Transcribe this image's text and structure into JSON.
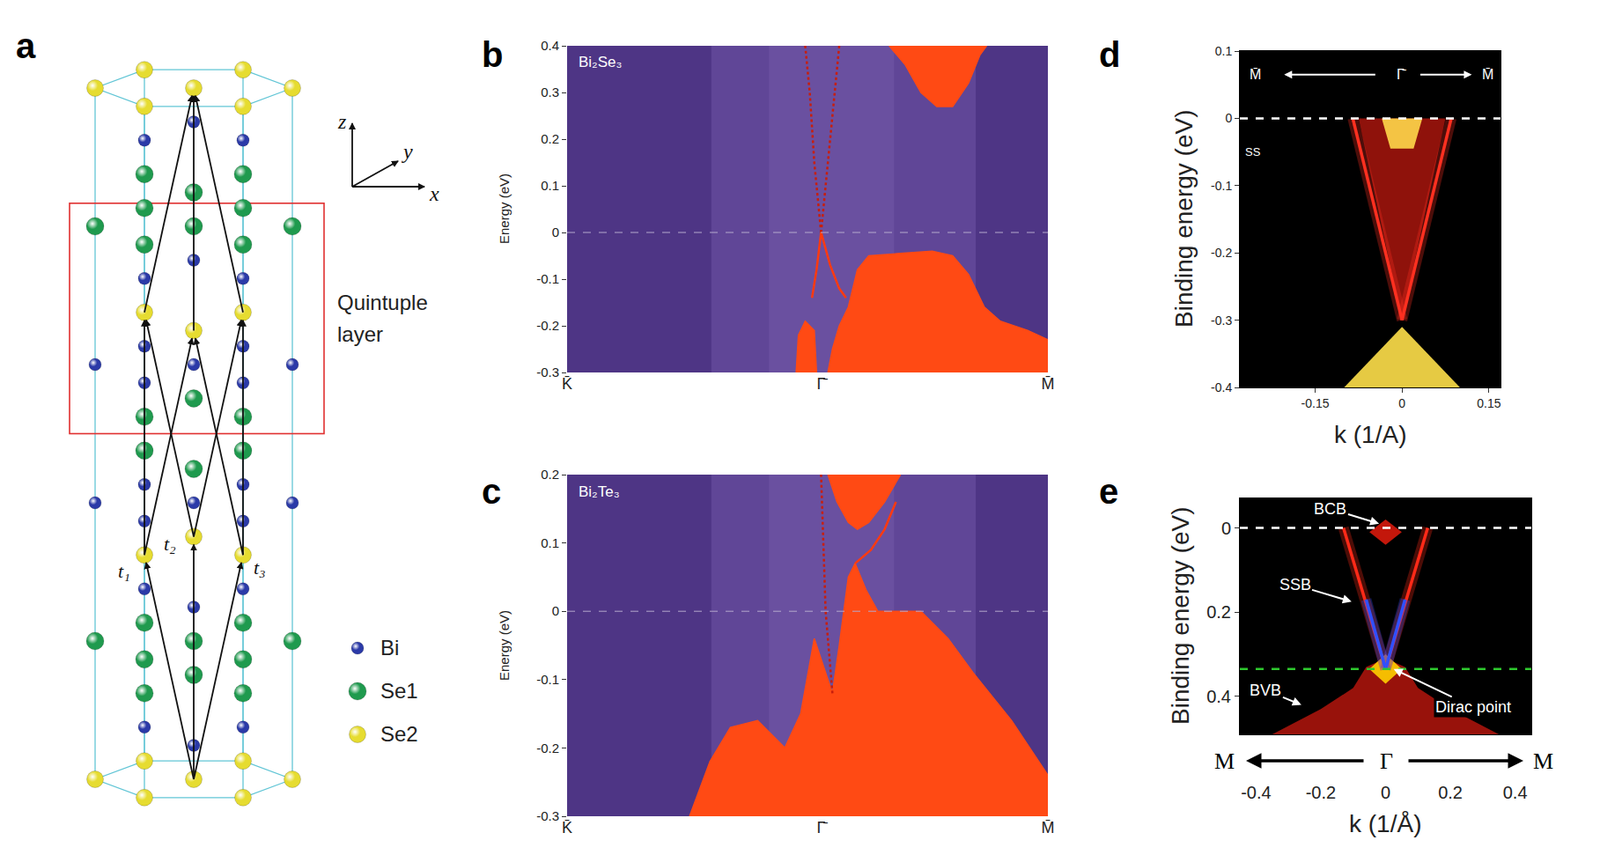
{
  "panel_a": {
    "panel_label": "a",
    "box_label": "Quintuple layer",
    "axes": [
      "x",
      "y",
      "z"
    ],
    "vectors": [
      "t₁",
      "t₂",
      "t₃"
    ],
    "legend": [
      {
        "name": "Bi",
        "color": "#2b3aa8"
      },
      {
        "name": "Se1",
        "color": "#1f9a4e"
      },
      {
        "name": "Se2",
        "color": "#e6dc30"
      }
    ]
  },
  "chart_data": [
    {
      "panel_label": "b",
      "type": "band",
      "title": "Bi₂Se₃",
      "y_label": "Energy (eV)",
      "xlim": [
        -1.12,
        1
      ],
      "xticks": [
        {
          "value": -1.12,
          "label": "K̄"
        },
        {
          "value": 0,
          "label": "Γ̄"
        },
        {
          "value": 1,
          "label": "M̄"
        }
      ],
      "ylim": [
        -0.3,
        0.4
      ],
      "yticks": [
        -0.3,
        -0.2,
        -0.1,
        0,
        0.1,
        0.2,
        0.3,
        0.4
      ],
      "series": [
        {
          "type": "area",
          "color": "#ff4a14",
          "x": [
            0.3,
            0.37,
            0.44,
            0.51,
            0.58,
            0.65,
            0.7,
            0.73
          ],
          "values": [
            0.4,
            0.36,
            0.3,
            0.27,
            0.27,
            0.32,
            0.38,
            0.4
          ]
        },
        {
          "type": "area",
          "color": "#ff4a14",
          "x": [
            0.03,
            0.05,
            0.08,
            0.12,
            0.16,
            0.21,
            0.35,
            0.49,
            0.58,
            0.65,
            0.72,
            0.79,
            0.91,
            1.0,
            1.0
          ],
          "values": [
            -0.3,
            -0.25,
            -0.2,
            -0.16,
            -0.08,
            -0.05,
            -0.045,
            -0.04,
            -0.05,
            -0.09,
            -0.16,
            -0.19,
            -0.21,
            -0.23,
            -0.3
          ]
        },
        {
          "type": "area",
          "color": "#ff4a14",
          "x": [
            -0.11,
            -0.1,
            -0.07,
            -0.03,
            -0.02
          ],
          "values": [
            -0.3,
            -0.22,
            -0.19,
            -0.21,
            -0.3
          ]
        },
        {
          "type": "line",
          "line_style": "dotted",
          "color": "#c81e0c",
          "x": [
            0,
            0.03,
            0.06,
            0.08
          ],
          "values": [
            0,
            0.15,
            0.3,
            0.4
          ]
        },
        {
          "type": "line",
          "line_style": "dotted",
          "color": "#c81e0c",
          "x": [
            0,
            -0.03,
            -0.05,
            -0.07
          ],
          "values": [
            0,
            0.15,
            0.3,
            0.4
          ]
        },
        {
          "type": "line",
          "line_style": "solid",
          "color": "#ff3a10",
          "x": [
            0,
            0.04,
            0.08,
            0.11
          ],
          "values": [
            0,
            -0.07,
            -0.12,
            -0.14
          ]
        },
        {
          "type": "line",
          "line_style": "solid",
          "color": "#ff3a10",
          "x": [
            0,
            -0.02,
            -0.04
          ],
          "values": [
            0,
            -0.08,
            -0.14
          ]
        },
        {
          "type": "line",
          "line_style": "dashed",
          "color": "#b4a9cc",
          "x": [
            -1.12,
            1
          ],
          "values": [
            0,
            0
          ]
        }
      ]
    },
    {
      "panel_label": "c",
      "type": "band",
      "title": "Bi₂Te₃",
      "y_label": "Energy (eV)",
      "xlim": [
        -1.12,
        1
      ],
      "xticks": [
        {
          "value": -1.12,
          "label": "K̄"
        },
        {
          "value": 0,
          "label": "Γ̄"
        },
        {
          "value": 1,
          "label": "M̄"
        }
      ],
      "ylim": [
        -0.3,
        0.2
      ],
      "yticks": [
        -0.3,
        -0.2,
        -0.1,
        0,
        0.1,
        0.2
      ],
      "series": [
        {
          "type": "area",
          "color": "#ff4a14",
          "x": [
            0.03,
            0.07,
            0.12,
            0.16,
            0.21,
            0.28,
            0.35
          ],
          "values": [
            0.2,
            0.16,
            0.13,
            0.12,
            0.13,
            0.16,
            0.2
          ]
        },
        {
          "type": "area",
          "color": "#ff4a14",
          "x": [
            -0.58,
            -0.49,
            -0.4,
            -0.28,
            -0.16,
            -0.09,
            -0.03,
            0.01,
            0.05,
            0.08,
            0.12,
            0.15,
            0.2,
            0.25,
            0.33,
            0.44,
            0.56,
            0.67,
            0.84,
            1.0,
            1.0
          ],
          "values": [
            -0.3,
            -0.22,
            -0.17,
            -0.16,
            -0.2,
            -0.15,
            -0.04,
            -0.08,
            -0.12,
            -0.05,
            0.05,
            0.07,
            0.03,
            0.0,
            0.0,
            0.0,
            -0.04,
            -0.09,
            -0.16,
            -0.24,
            -0.3
          ]
        },
        {
          "type": "line",
          "line_style": "dotted",
          "color": "#c81e0c",
          "x": [
            0.05,
            0.02,
            0.01,
            0.0
          ],
          "values": [
            -0.12,
            0.0,
            0.1,
            0.2
          ]
        },
        {
          "type": "line",
          "line_style": "solid",
          "color": "#ff3a10",
          "x": [
            0.15,
            0.22,
            0.28,
            0.33
          ],
          "values": [
            0.07,
            0.09,
            0.12,
            0.16
          ]
        },
        {
          "type": "line",
          "line_style": "dashed",
          "color": "#b4a9cc",
          "x": [
            -1.12,
            1
          ],
          "values": [
            0,
            0
          ]
        }
      ]
    },
    {
      "panel_label": "d",
      "type": "arpes",
      "y_label": "Binding energy (eV)",
      "x_label": "k (1/A)",
      "xlim": [
        -0.28,
        0.17
      ],
      "xticks": [
        -0.15,
        0,
        0.15
      ],
      "ylim": [
        -0.4,
        0.1
      ],
      "yticks": [
        -0.4,
        -0.3,
        -0.2,
        -0.1,
        0,
        0.1
      ],
      "path_labels": [
        "M̄",
        "Γ̄",
        "M̄"
      ],
      "annotations": [
        {
          "text": "SS",
          "x": -0.257,
          "y": -0.05
        }
      ],
      "series": [
        {
          "type": "area",
          "color": "#9e140c",
          "x": [
            0,
            -0.075,
            0.075
          ],
          "values": [
            -0.3,
            0,
            0
          ]
        },
        {
          "type": "area",
          "color": "#ffd84a",
          "x": [
            -0.035,
            0.035,
            0.02,
            -0.02
          ],
          "values": [
            0,
            0,
            -0.045,
            -0.045
          ]
        },
        {
          "type": "area",
          "color": "#ffe04a",
          "x": [
            0,
            0.1,
            -0.1
          ],
          "values": [
            -0.31,
            -0.4,
            -0.4
          ]
        },
        {
          "type": "line",
          "line_style": "solid",
          "color": "#ff3020",
          "x": [
            0,
            -0.085
          ],
          "values": [
            -0.3,
            0
          ]
        },
        {
          "type": "line",
          "line_style": "solid",
          "color": "#ff3020",
          "x": [
            0,
            0.085
          ],
          "values": [
            -0.3,
            0
          ]
        },
        {
          "type": "line",
          "line_style": "dashed",
          "color": "#ffffff",
          "x": [
            -0.28,
            0.17
          ],
          "values": [
            0,
            0
          ]
        }
      ]
    },
    {
      "panel_label": "e",
      "type": "arpes",
      "y_label": "Binding energy (eV)",
      "x_label": "k (1/Å)",
      "xlim": [
        -0.45,
        0.45
      ],
      "xticks": [
        -0.4,
        -0.2,
        0,
        0.2,
        0.4
      ],
      "ylim": [
        0.49,
        -0.07
      ],
      "yticks": [
        0,
        0.2,
        0.4
      ],
      "path_labels": [
        "M",
        "Γ",
        "M"
      ],
      "annotations": [
        {
          "text": "BCB",
          "x": -0.17,
          "y": -0.045,
          "arrow_x": -0.02,
          "arrow_y": -0.01
        },
        {
          "text": "SSB",
          "x": -0.28,
          "y": 0.135,
          "arrow_x": -0.105,
          "arrow_y": 0.175
        },
        {
          "text": "BVB",
          "x": -0.37,
          "y": 0.385,
          "arrow_x": -0.26,
          "arrow_y": 0.42
        },
        {
          "text": "Dirac point",
          "x": 0.27,
          "y": 0.425,
          "arrow_x": 0.025,
          "arrow_y": 0.335
        }
      ],
      "series": [
        {
          "type": "area",
          "color": "#a8140c",
          "x": [
            -0.06,
            0,
            0.06,
            0.1,
            0.2,
            0.35,
            -0.35,
            -0.2,
            -0.1
          ],
          "values": [
            0.33,
            0.31,
            0.33,
            0.38,
            0.43,
            0.49,
            0.49,
            0.43,
            0.38
          ]
        },
        {
          "type": "area",
          "color": "#ffd000",
          "x": [
            -0.05,
            0,
            0.05,
            0
          ],
          "values": [
            0.335,
            0.3,
            0.335,
            0.37
          ]
        },
        {
          "type": "area",
          "color": "#d81a0c",
          "x": [
            -0.05,
            0,
            0.05,
            0
          ],
          "values": [
            0.01,
            -0.02,
            0.01,
            0.04
          ]
        },
        {
          "type": "line",
          "line_style": "solid",
          "color": "#ff2a18",
          "x": [
            0,
            -0.13
          ],
          "values": [
            0.335,
            0
          ]
        },
        {
          "type": "line",
          "line_style": "solid",
          "color": "#ff2a18",
          "x": [
            0,
            0.13
          ],
          "values": [
            0.335,
            0
          ]
        },
        {
          "type": "line",
          "line_style": "solid",
          "color": "#3050ff",
          "x": [
            0,
            -0.06
          ],
          "values": [
            0.335,
            0.17
          ]
        },
        {
          "type": "line",
          "line_style": "solid",
          "color": "#3050ff",
          "x": [
            0,
            0.06
          ],
          "values": [
            0.335,
            0.17
          ]
        },
        {
          "type": "line",
          "line_style": "dashed",
          "color": "#ffffff",
          "x": [
            -0.45,
            0.45
          ],
          "values": [
            0,
            0
          ]
        },
        {
          "type": "line",
          "line_style": "dashed",
          "color": "#2ec82e",
          "x": [
            -0.45,
            0.45
          ],
          "values": [
            0.335,
            0.335
          ]
        }
      ]
    }
  ]
}
